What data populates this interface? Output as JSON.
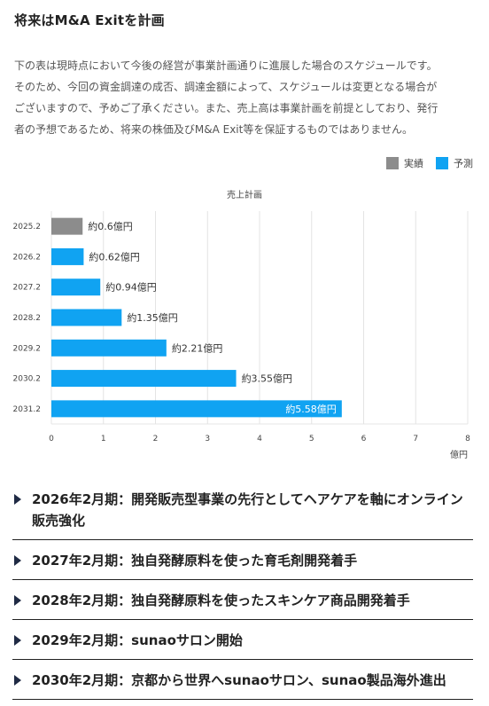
{
  "title": "将来はM&A Exitを計画",
  "description": [
    "下の表は現時点において今後の経営が事業計画通りに進展した場合のスケジュールです。",
    "そのため、今回の資金調達の成否、調達金額によって、スケジュールは変更となる場合が",
    "ございますので、予めご了承ください。また、売上高は事業計画を前提としており、発行",
    "者の予想であるため、将来の株価及びM&A Exit等を保証するものではありません。"
  ],
  "legend": {
    "actual_label": "実績",
    "forecast_label": "予測"
  },
  "colors": {
    "actual": "#8c8c8c",
    "forecast": "#10a3f2",
    "grid": "#e4e4e4",
    "arrow": "#1f2a44"
  },
  "chart_data": {
    "type": "bar",
    "orientation": "horizontal",
    "title": "売上計画",
    "xlabel": "億円",
    "xlim": [
      0,
      8
    ],
    "xticks": [
      0,
      1,
      2,
      3,
      4,
      5,
      6,
      7,
      8
    ],
    "grid": true,
    "legend_position": "top-right",
    "categories": [
      "2025.2",
      "2026.2",
      "2027.2",
      "2028.2",
      "2029.2",
      "2030.2",
      "2031.2"
    ],
    "values": [
      0.6,
      0.62,
      0.94,
      1.35,
      2.21,
      3.55,
      5.58
    ],
    "kinds": [
      "actual",
      "forecast",
      "forecast",
      "forecast",
      "forecast",
      "forecast",
      "forecast"
    ],
    "data_labels": [
      "約0.6億円",
      "約0.62億円",
      "約0.94億円",
      "約1.35億円",
      "約2.21億円",
      "約3.55億円",
      "約5.58億円"
    ],
    "series": [
      {
        "name": "実績",
        "values": [
          0.6,
          null,
          null,
          null,
          null,
          null,
          null
        ]
      },
      {
        "name": "予測",
        "values": [
          null,
          0.62,
          0.94,
          1.35,
          2.21,
          3.55,
          5.58
        ]
      }
    ]
  },
  "milestones": [
    "2026年2月期：開発販売型事業の先行としてヘアケアを軸にオンライン販売強化",
    "2027年2月期：独自発酵原料を使った育毛剤開発着手",
    "2028年2月期：独自発酵原料を使ったスキンケア商品開発着手",
    "2029年2月期：sunaoサロン開始",
    "2030年2月期：京都から世界へsunaoサロン、sunao製品海外進出"
  ]
}
